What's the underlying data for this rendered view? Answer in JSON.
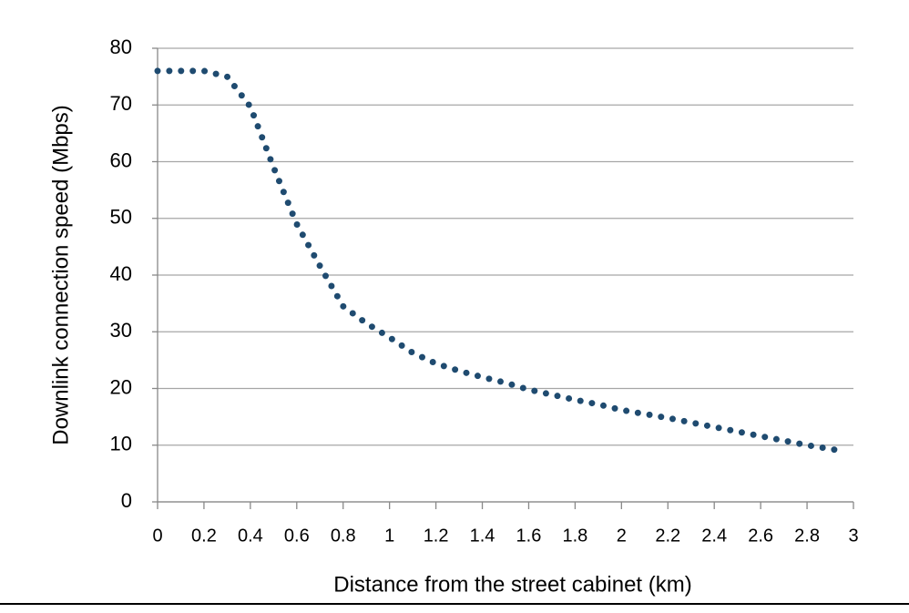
{
  "chart_data": {
    "type": "line",
    "x_label": "Distance from the street cabinet (km)",
    "y_label": "Downlink connection speed (Mbps)",
    "x": [
      0,
      0.1,
      0.2,
      0.3,
      0.4,
      0.5,
      0.6,
      0.7,
      0.8,
      0.9,
      1.0,
      1.1,
      1.2,
      1.3,
      1.4,
      1.5,
      1.6,
      1.7,
      1.8,
      1.9,
      2.0,
      2.1,
      2.2,
      2.3,
      2.4,
      2.5,
      2.6,
      2.7,
      2.8,
      2.95
    ],
    "values": [
      76,
      76,
      76,
      75,
      69.7,
      59,
      49,
      41.6,
      34.5,
      31.5,
      29,
      26.3,
      24.4,
      23.1,
      22,
      21,
      19.8,
      18.9,
      18,
      17.2,
      16.2,
      15.5,
      14.8,
      14,
      13.2,
      12.4,
      11.6,
      10.8,
      10,
      9
    ],
    "color": "#1f4b70",
    "xlim": [
      0,
      3
    ],
    "xticks": [
      0,
      0.2,
      0.4,
      0.6,
      0.8,
      1,
      1.2,
      1.4,
      1.6,
      1.8,
      2,
      2.2,
      2.4,
      2.6,
      2.8,
      3
    ],
    "ylim": [
      0,
      80
    ],
    "yticks": [
      0,
      10,
      20,
      30,
      40,
      50,
      60,
      70,
      80
    ],
    "grid": true
  }
}
